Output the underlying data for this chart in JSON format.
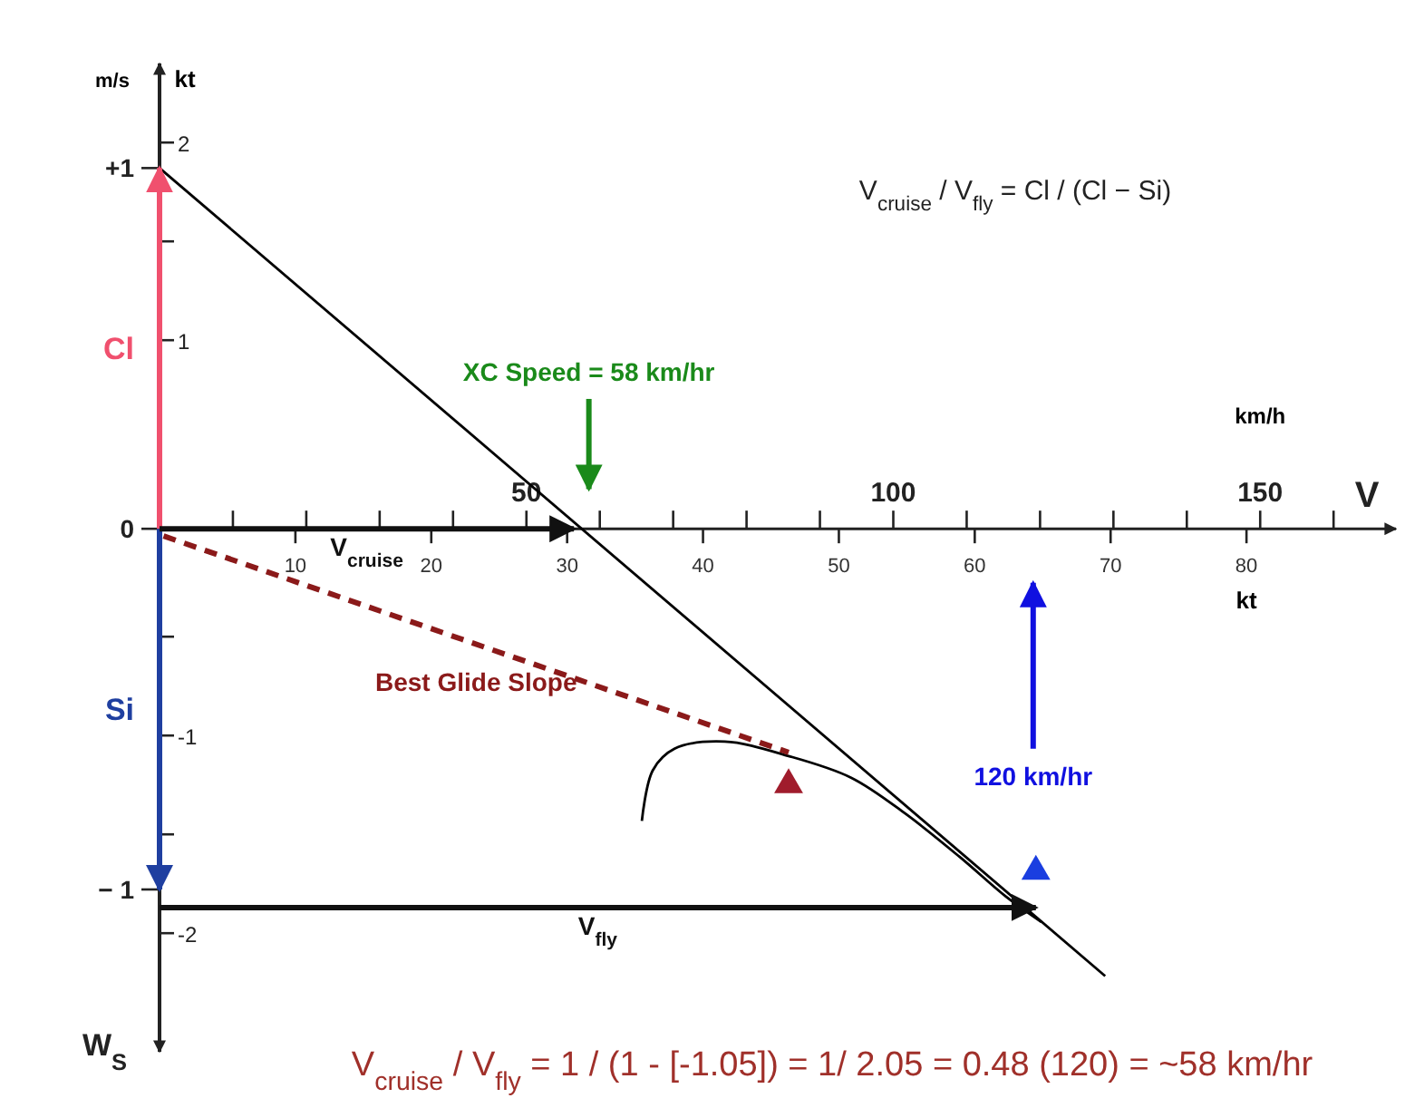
{
  "chart_data": {
    "type": "line",
    "title": "V$_{cruise}$ / V$_{fly}$ = Cl / (Cl − Si)",
    "xlabel": "kt",
    "x2label": "km/h",
    "ylabel": "m/s",
    "y2label": "kt",
    "xlim": [
      0,
      91
    ],
    "xticks": [
      10,
      20,
      30,
      40,
      50,
      60,
      70,
      80
    ],
    "x2lim": [
      0,
      168.5
    ],
    "x2ticks": [
      {
        "value": 10,
        "label": null
      },
      {
        "value": 20,
        "label": null
      },
      {
        "value": 30,
        "label": null
      },
      {
        "value": 40,
        "label": null
      },
      50,
      {
        "value": 60,
        "label": null
      },
      {
        "value": 70,
        "label": null
      },
      {
        "value": 80,
        "label": null
      },
      {
        "value": 90,
        "label": null
      },
      100,
      {
        "value": 110,
        "label": null
      },
      {
        "value": 120,
        "label": null
      },
      {
        "value": 130,
        "label": null
      },
      {
        "value": 140,
        "label": null
      },
      150,
      {
        "value": 160,
        "label": null
      }
    ],
    "ylim": [
      -1.45,
      1.29
    ],
    "yticks": [
      {
        "value": 1,
        "label": "+1"
      },
      0,
      {
        "value": -1,
        "label": "− 1"
      }
    ],
    "y2lim": [
      -2.6,
      2.4
    ],
    "y2ticks": [
      2,
      {
        "value": 1.5,
        "label": null
      },
      1,
      {
        "value": -0.5,
        "label": null
      },
      {
        "value": -1,
        "label": "-1"
      },
      {
        "value": -1.5,
        "label": null
      },
      {
        "value": -2,
        "label": "-2"
      }
    ],
    "series": [
      {
        "color": "#000000",
        "x": [
          0,
          69.6
        ],
        "values": [
          1,
          -1.24
        ]
      },
      {
        "color": "#000000",
        "x": [
          35.5,
          36.3,
          37.9,
          41.6,
          46.3,
          50.9,
          54.9,
          58.9,
          62.3,
          64.9
        ],
        "values": [
          -0.81,
          -0.67,
          -0.61,
          -0.59,
          -0.63,
          -0.69,
          -0.79,
          -0.91,
          -1.02,
          -1.09
        ]
      },
      {
        "name": "Best Glide Slope",
        "color": "#8b1a1a",
        "line_style": "dashed",
        "x": [
          0.3,
          46.3
        ],
        "values": [
          -0.02,
          -0.62
        ]
      },
      {
        "name": "Cl",
        "color": "#f0506e",
        "x": [
          0,
          0
        ],
        "values": [
          0,
          1
        ]
      },
      {
        "name": "Si",
        "color": "#1f3fa0",
        "x": [
          0,
          0
        ],
        "values": [
          0,
          -1
        ]
      },
      {
        "name": "V$_{cruise}$",
        "color": "#111111",
        "x": [
          0,
          30.5
        ],
        "values": [
          0,
          0
        ]
      },
      {
        "name": "V$_{fly}$",
        "color": "#111111",
        "x": [
          0,
          64.5
        ],
        "values": [
          -1.05,
          -1.05
        ]
      },
      {
        "name": "XC Speed = 58 km/hr",
        "color": "#1a8a1a",
        "x": [
          31.6,
          31.6
        ],
        "values": [
          0.36,
          0.11
        ]
      },
      {
        "name": "120 km/hr",
        "color": "#1010e0",
        "x": [
          64.3,
          64.3
        ],
        "values": [
          -0.61,
          -0.15
        ]
      },
      {
        "type": "scatter",
        "marker": "triangle",
        "color": "#a01c2c",
        "x": [
          46.3
        ],
        "values": [
          -0.71
        ]
      },
      {
        "type": "scatter",
        "marker": "triangle",
        "color": "#1a3ee0",
        "x": [
          64.5
        ],
        "values": [
          -0.95
        ]
      }
    ],
    "annotations": [
      "W$_{S}$",
      "V",
      "V$_{cruise}$ / V$_{fly}$ =  1 / (1 - [-1.05]) = 1/ 2.05 = 0.48 (120) = ~58 km/hr"
    ]
  }
}
